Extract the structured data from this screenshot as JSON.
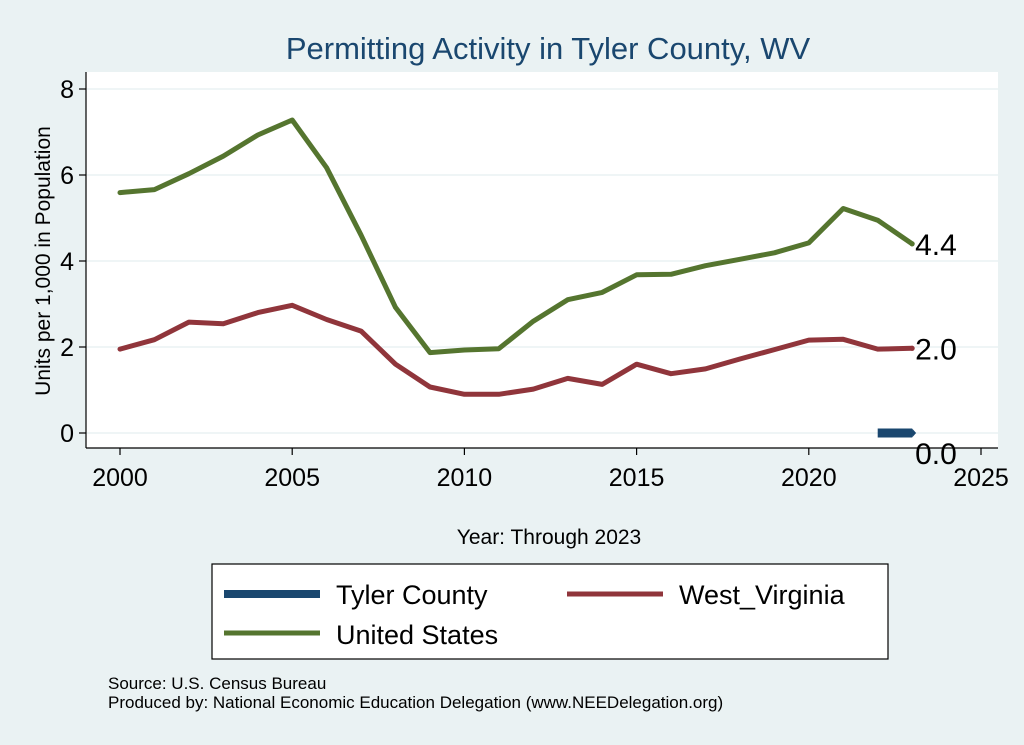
{
  "chart_data": {
    "type": "line",
    "title": "Permitting Activity in Tyler County, WV",
    "xlabel": "Year: Through 2023",
    "ylabel": "Units per 1,000 in Population",
    "xlim": [
      2000,
      2025
    ],
    "ylim": [
      0,
      8
    ],
    "x_ticks": [
      2000,
      2005,
      2010,
      2015,
      2020,
      2025
    ],
    "y_ticks": [
      0,
      2,
      4,
      6,
      8
    ],
    "grid": true,
    "series": [
      {
        "name": "Tyler County",
        "color": "#1a476f",
        "x": [
          2022,
          2023
        ],
        "values": [
          0.0,
          0.0
        ],
        "end_label": "0.0"
      },
      {
        "name": "West_Virginia",
        "color": "#90353b",
        "x": [
          2000,
          2001,
          2002,
          2003,
          2004,
          2005,
          2006,
          2007,
          2008,
          2009,
          2010,
          2011,
          2012,
          2013,
          2014,
          2015,
          2016,
          2017,
          2018,
          2019,
          2020,
          2021,
          2022,
          2023
        ],
        "values": [
          1.95,
          2.17,
          2.58,
          2.54,
          2.8,
          2.97,
          2.64,
          2.37,
          1.6,
          1.07,
          0.9,
          0.9,
          1.02,
          1.27,
          1.13,
          1.6,
          1.38,
          1.49,
          1.72,
          1.94,
          2.16,
          2.18,
          1.95,
          1.97
        ],
        "end_label": "2.0"
      },
      {
        "name": "United States",
        "color": "#55752f",
        "x": [
          2000,
          2001,
          2002,
          2003,
          2004,
          2005,
          2006,
          2007,
          2008,
          2009,
          2010,
          2011,
          2012,
          2013,
          2014,
          2015,
          2016,
          2017,
          2018,
          2019,
          2020,
          2021,
          2022,
          2023
        ],
        "values": [
          5.59,
          5.66,
          6.03,
          6.44,
          6.93,
          7.28,
          6.17,
          4.6,
          2.92,
          1.87,
          1.93,
          1.96,
          2.6,
          3.1,
          3.27,
          3.68,
          3.69,
          3.89,
          4.04,
          4.19,
          4.42,
          5.22,
          4.95,
          4.4
        ],
        "end_label": "4.4"
      }
    ],
    "legend": {
      "placement": "bottom",
      "entries": [
        "Tyler County",
        "West_Virginia",
        "United States"
      ]
    }
  },
  "footer": {
    "source": "Source: U.S. Census Bureau",
    "produced_by": "Produced by: National Economic Education Delegation (www.NEEDelegation.org)"
  },
  "colors": {
    "background": "#eaf2f3",
    "plot_background": "#ffffff",
    "title": "#1a476f",
    "grid": "#eaf2f3"
  }
}
